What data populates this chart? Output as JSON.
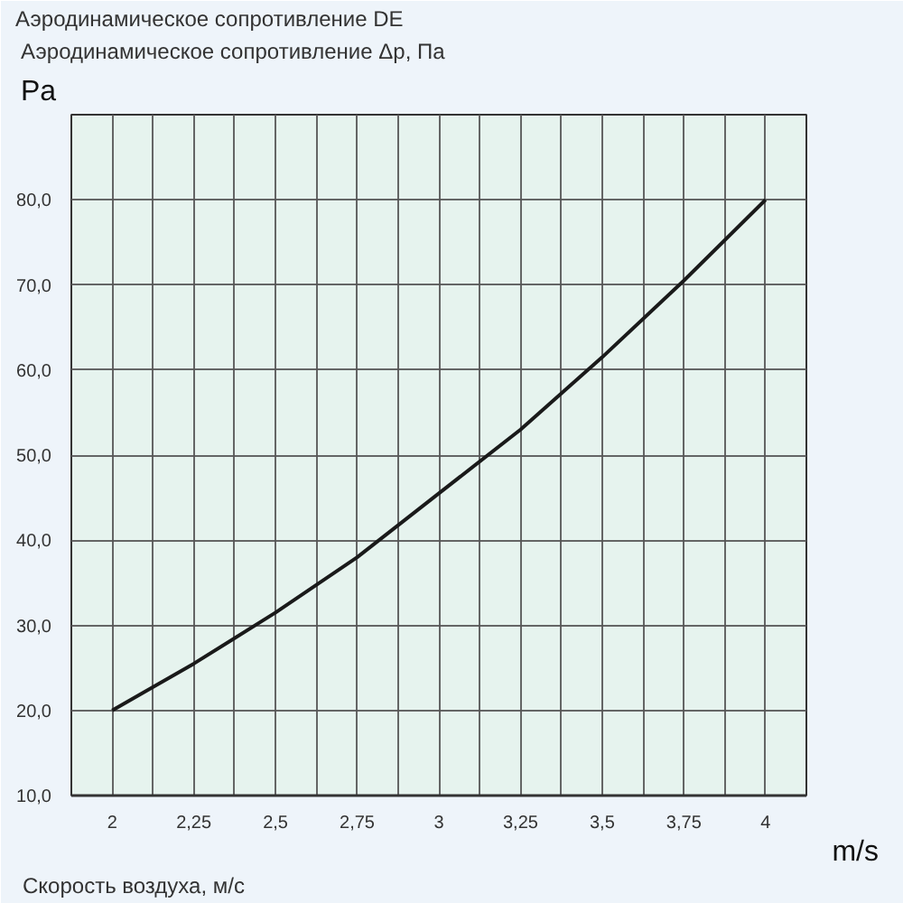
{
  "chart_data": {
    "type": "line",
    "title": "Аэродинамическое сопротивление DE",
    "subtitle": "Аэродинамическое сопротивление Δр, Па",
    "ylabel": "Pa",
    "xlabel": "Скорость воздуха, м/с",
    "annotations": [
      "m/s"
    ],
    "x": [
      2,
      2.25,
      2.5,
      2.75,
      3,
      3.25,
      3.5,
      3.75,
      4
    ],
    "series": [
      {
        "color": "#1a1a1a",
        "values": [
          20,
          25.5,
          31.5,
          38,
          45.5,
          53,
          61.5,
          70.5,
          80
        ]
      }
    ],
    "xlim": [
      1.875,
      4.125
    ],
    "xticks": [
      {
        "value": 1.875,
        "label": null
      },
      2,
      {
        "value": 2.125,
        "label": null
      },
      {
        "value": 2.25,
        "label": "2,25"
      },
      {
        "value": 2.375,
        "label": null
      },
      {
        "value": 2.5,
        "label": "2,5"
      },
      {
        "value": 2.625,
        "label": null
      },
      {
        "value": 2.75,
        "label": "2,75"
      },
      {
        "value": 2.875,
        "label": null
      },
      3,
      {
        "value": 3.125,
        "label": null
      },
      {
        "value": 3.25,
        "label": "3,25"
      },
      {
        "value": 3.375,
        "label": null
      },
      {
        "value": 3.5,
        "label": "3,5"
      },
      {
        "value": 3.625,
        "label": null
      },
      {
        "value": 3.75,
        "label": "3,75"
      },
      {
        "value": 3.875,
        "label": null
      },
      4,
      {
        "value": 4.125,
        "label": null
      }
    ],
    "ylim": [
      10,
      90
    ],
    "yticks": [
      {
        "value": 10,
        "label": "10,0"
      },
      {
        "value": 20,
        "label": "20,0"
      },
      {
        "value": 30,
        "label": "30,0"
      },
      {
        "value": 40,
        "label": "40,0"
      },
      {
        "value": 50,
        "label": "50,0"
      },
      {
        "value": 60,
        "label": "60,0"
      },
      {
        "value": 70,
        "label": "70,0"
      },
      {
        "value": 80,
        "label": "80,0"
      },
      {
        "value": 90,
        "label": null
      }
    ],
    "grid": true,
    "marker": "none",
    "line_style": "solid"
  }
}
